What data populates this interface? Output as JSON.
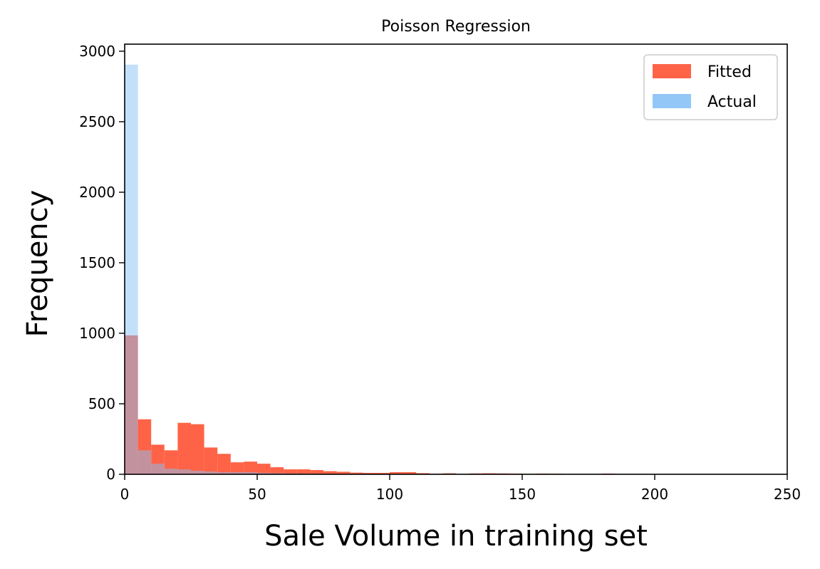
{
  "chart_data": {
    "type": "bar",
    "title": "Poisson Regression",
    "xlabel": "Sale Volume in training set",
    "ylabel": "Frequency",
    "xlim": [
      0,
      250
    ],
    "ylim": [
      0,
      3050
    ],
    "xticks": [
      0,
      50,
      100,
      150,
      200,
      250
    ],
    "yticks": [
      0,
      500,
      1000,
      1500,
      2000,
      2500,
      3000
    ],
    "grid": false,
    "legend_position": "top-right",
    "series": [
      {
        "name": "Fitted",
        "color": "#ff6347",
        "bins": [
          {
            "x0": 0,
            "x1": 5,
            "count": 985
          },
          {
            "x0": 5,
            "x1": 10,
            "count": 390
          },
          {
            "x0": 10,
            "x1": 15,
            "count": 210
          },
          {
            "x0": 15,
            "x1": 20,
            "count": 170
          },
          {
            "x0": 20,
            "x1": 25,
            "count": 365
          },
          {
            "x0": 25,
            "x1": 30,
            "count": 355
          },
          {
            "x0": 30,
            "x1": 35,
            "count": 190
          },
          {
            "x0": 35,
            "x1": 40,
            "count": 145
          },
          {
            "x0": 40,
            "x1": 45,
            "count": 85
          },
          {
            "x0": 45,
            "x1": 50,
            "count": 90
          },
          {
            "x0": 50,
            "x1": 55,
            "count": 75
          },
          {
            "x0": 55,
            "x1": 60,
            "count": 50
          },
          {
            "x0": 60,
            "x1": 65,
            "count": 35
          },
          {
            "x0": 65,
            "x1": 70,
            "count": 35
          },
          {
            "x0": 70,
            "x1": 75,
            "count": 30
          },
          {
            "x0": 75,
            "x1": 80,
            "count": 22
          },
          {
            "x0": 80,
            "x1": 85,
            "count": 18
          },
          {
            "x0": 85,
            "x1": 90,
            "count": 12
          },
          {
            "x0": 90,
            "x1": 95,
            "count": 10
          },
          {
            "x0": 95,
            "x1": 100,
            "count": 10
          },
          {
            "x0": 100,
            "x1": 105,
            "count": 15
          },
          {
            "x0": 105,
            "x1": 110,
            "count": 15
          },
          {
            "x0": 110,
            "x1": 115,
            "count": 8
          },
          {
            "x0": 115,
            "x1": 120,
            "count": 4
          },
          {
            "x0": 120,
            "x1": 125,
            "count": 7
          },
          {
            "x0": 125,
            "x1": 130,
            "count": 3
          },
          {
            "x0": 130,
            "x1": 135,
            "count": 6
          },
          {
            "x0": 135,
            "x1": 140,
            "count": 7
          },
          {
            "x0": 140,
            "x1": 145,
            "count": 6
          },
          {
            "x0": 145,
            "x1": 150,
            "count": 5
          },
          {
            "x0": 150,
            "x1": 155,
            "count": 3
          },
          {
            "x0": 155,
            "x1": 160,
            "count": 5
          },
          {
            "x0": 160,
            "x1": 165,
            "count": 4
          },
          {
            "x0": 165,
            "x1": 170,
            "count": 2
          },
          {
            "x0": 170,
            "x1": 175,
            "count": 2
          },
          {
            "x0": 175,
            "x1": 180,
            "count": 2
          },
          {
            "x0": 180,
            "x1": 185,
            "count": 5
          },
          {
            "x0": 185,
            "x1": 190,
            "count": 2
          }
        ]
      },
      {
        "name": "Actual",
        "color": "#87c1f7",
        "bins": [
          {
            "x0": 0,
            "x1": 5,
            "count": 2905
          },
          {
            "x0": 5,
            "x1": 10,
            "count": 170
          },
          {
            "x0": 10,
            "x1": 15,
            "count": 75
          },
          {
            "x0": 15,
            "x1": 20,
            "count": 40
          },
          {
            "x0": 20,
            "x1": 25,
            "count": 35
          },
          {
            "x0": 25,
            "x1": 30,
            "count": 25
          },
          {
            "x0": 30,
            "x1": 35,
            "count": 20
          },
          {
            "x0": 35,
            "x1": 40,
            "count": 15
          },
          {
            "x0": 40,
            "x1": 45,
            "count": 15
          },
          {
            "x0": 45,
            "x1": 50,
            "count": 15
          },
          {
            "x0": 50,
            "x1": 55,
            "count": 10
          },
          {
            "x0": 55,
            "x1": 60,
            "count": 8
          },
          {
            "x0": 60,
            "x1": 65,
            "count": 6
          },
          {
            "x0": 65,
            "x1": 70,
            "count": 5
          },
          {
            "x0": 70,
            "x1": 75,
            "count": 4
          },
          {
            "x0": 75,
            "x1": 80,
            "count": 4
          },
          {
            "x0": 80,
            "x1": 85,
            "count": 3
          },
          {
            "x0": 85,
            "x1": 90,
            "count": 3
          },
          {
            "x0": 90,
            "x1": 95,
            "count": 2
          },
          {
            "x0": 95,
            "x1": 100,
            "count": 2
          },
          {
            "x0": 100,
            "x1": 105,
            "count": 2
          },
          {
            "x0": 105,
            "x1": 110,
            "count": 1
          },
          {
            "x0": 110,
            "x1": 115,
            "count": 1
          },
          {
            "x0": 115,
            "x1": 120,
            "count": 1
          }
        ]
      }
    ]
  }
}
